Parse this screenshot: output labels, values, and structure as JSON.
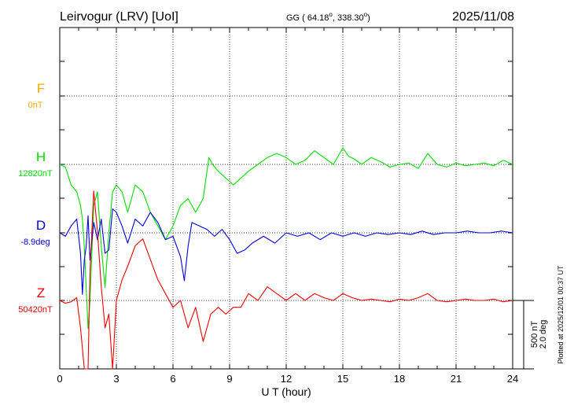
{
  "header": {
    "station": "Leirvogur (LRV)  [UoI]",
    "coords_prefix": "GG ( 64.18",
    "coords_mid": ", 338.30",
    "coords_suffix": ")",
    "date": "2025/11/08"
  },
  "footer": {
    "plotted_at": "Plotted at 2025/12/01 00:37 UT"
  },
  "scale_bar": {
    "label_nt": "500 nT",
    "label_deg": "2.0 deg"
  },
  "colors": {
    "F": "#ffaa00",
    "H": "#00e000",
    "D": "#0000dd",
    "Z": "#ee0000"
  },
  "chart_data": {
    "type": "line",
    "title": "",
    "xlabel": "U T (hour)",
    "ylabel": "",
    "xlim": [
      0,
      24
    ],
    "x_ticks": [
      "0",
      "3",
      "6",
      "9",
      "12",
      "15",
      "18",
      "21",
      "24"
    ],
    "grid": true,
    "units_per_scale_bar": {
      "nT": 500,
      "deg": 2.0
    },
    "series": [
      {
        "name": "F",
        "baseline_label": "0nT",
        "color": "#ffaa00",
        "x": [],
        "y": []
      },
      {
        "name": "H",
        "baseline_label": "12820nT",
        "color": "#00e000",
        "x": [
          0,
          0.3,
          0.6,
          0.9,
          1.1,
          1.2,
          1.3,
          1.4,
          1.5,
          1.6,
          1.8,
          2.0,
          2.2,
          2.4,
          2.6,
          2.8,
          3.0,
          3.3,
          3.6,
          4.0,
          4.4,
          4.8,
          5.2,
          5.6,
          6.0,
          6.4,
          6.8,
          7.2,
          7.6,
          7.9,
          8.1,
          8.4,
          8.8,
          9.2,
          9.6,
          10.0,
          10.5,
          11.0,
          11.5,
          12.0,
          12.5,
          13.0,
          13.5,
          14.0,
          14.5,
          15.0,
          15.3,
          15.6,
          16.0,
          16.5,
          17.0,
          17.5,
          18.0,
          18.5,
          19.0,
          19.5,
          20.0,
          20.5,
          21.0,
          21.5,
          22.0,
          22.5,
          23.0,
          23.5,
          24.0
        ],
        "y": [
          0,
          -20,
          -150,
          -200,
          -300,
          -400,
          -600,
          -900,
          -1200,
          -1000,
          -300,
          -200,
          -600,
          -900,
          -500,
          -200,
          -150,
          -200,
          -350,
          -150,
          -200,
          -350,
          -450,
          -550,
          -450,
          -300,
          -250,
          -350,
          -250,
          50,
          0,
          -50,
          -100,
          -150,
          -100,
          -50,
          0,
          50,
          80,
          50,
          0,
          30,
          100,
          50,
          0,
          120,
          60,
          40,
          0,
          50,
          20,
          -20,
          0,
          10,
          -30,
          80,
          0,
          -20,
          10,
          -10,
          0,
          10,
          -10,
          30,
          0
        ]
      },
      {
        "name": "D",
        "baseline_label": "-8.9deg",
        "color": "#0000dd",
        "x": [
          0,
          0.3,
          0.6,
          0.9,
          1.1,
          1.2,
          1.3,
          1.4,
          1.5,
          1.6,
          1.8,
          2.0,
          2.2,
          2.4,
          2.6,
          2.8,
          3.0,
          3.3,
          3.6,
          4.0,
          4.4,
          4.8,
          5.2,
          5.6,
          6.0,
          6.2,
          6.4,
          6.6,
          6.8,
          7.0,
          7.4,
          7.8,
          8.2,
          8.6,
          9.0,
          9.4,
          9.8,
          10.2,
          10.8,
          11.4,
          12.0,
          12.6,
          13.2,
          13.8,
          14.4,
          15.0,
          15.6,
          16.2,
          16.8,
          17.4,
          18.0,
          18.6,
          19.2,
          19.8,
          20.4,
          21.0,
          21.6,
          22.2,
          22.8,
          23.4,
          24.0
        ],
        "y": [
          0,
          -0.1,
          0.2,
          0.4,
          -0.6,
          -1.8,
          -0.8,
          -0.4,
          0.5,
          -0.8,
          0.3,
          -0.2,
          0.4,
          -0.6,
          -0.5,
          0.7,
          0.6,
          0.2,
          -0.3,
          0.4,
          0.2,
          0.6,
          0.3,
          -0.2,
          -0.1,
          -0.4,
          -0.7,
          -1.4,
          -0.4,
          0.3,
          0.2,
          0.1,
          -0.1,
          0.1,
          -0.2,
          -0.6,
          -0.5,
          -0.3,
          -0.1,
          -0.3,
          0,
          -0.1,
          0,
          -0.2,
          0,
          -0.1,
          0,
          -0.1,
          0,
          -0.05,
          0,
          -0.05,
          0.05,
          -0.05,
          0,
          0,
          0.05,
          0,
          0,
          0.05,
          0
        ]
      },
      {
        "name": "Z",
        "baseline_label": "50420nT",
        "color": "#ee0000",
        "x": [
          0,
          0.3,
          0.6,
          0.9,
          1.1,
          1.3,
          1.4,
          1.5,
          1.6,
          1.8,
          2.0,
          2.2,
          2.4,
          2.6,
          2.8,
          3.0,
          3.3,
          3.6,
          4.0,
          4.4,
          4.8,
          5.2,
          5.6,
          6.0,
          6.4,
          6.8,
          7.2,
          7.6,
          8.0,
          8.4,
          8.8,
          9.2,
          9.6,
          10.0,
          10.5,
          11.0,
          11.5,
          12.0,
          12.5,
          13.0,
          13.5,
          14.0,
          14.5,
          15.0,
          15.5,
          16.0,
          16.5,
          17.0,
          17.5,
          18.0,
          18.5,
          19.0,
          19.5,
          20.0,
          20.5,
          21.0,
          21.5,
          22.0,
          22.5,
          23.0,
          23.5,
          24.0
        ],
        "y": [
          0,
          -20,
          -10,
          20,
          -200,
          -900,
          -1150,
          -600,
          200,
          800,
          500,
          100,
          -200,
          -100,
          -500,
          0,
          150,
          250,
          400,
          450,
          300,
          150,
          50,
          -50,
          0,
          -200,
          -50,
          -300,
          -100,
          -50,
          -100,
          -50,
          -50,
          50,
          0,
          100,
          50,
          0,
          50,
          0,
          50,
          20,
          0,
          50,
          20,
          0,
          10,
          0,
          -10,
          10,
          0,
          20,
          50,
          0,
          -10,
          0,
          10,
          0,
          0,
          10,
          -10,
          0
        ]
      }
    ]
  }
}
